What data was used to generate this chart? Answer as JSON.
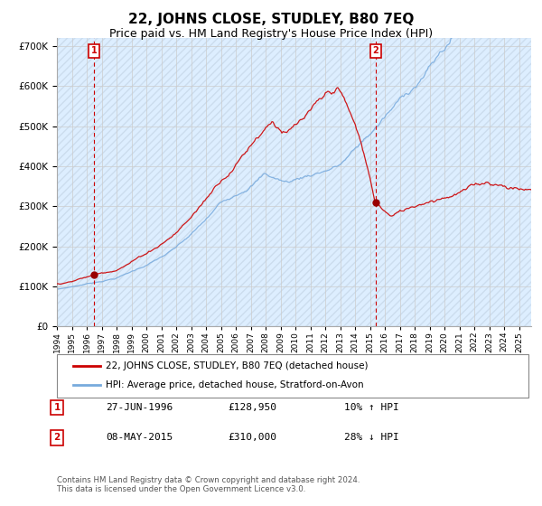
{
  "title": "22, JOHNS CLOSE, STUDLEY, B80 7EQ",
  "subtitle": "Price paid vs. HM Land Registry's House Price Index (HPI)",
  "title_fontsize": 11,
  "subtitle_fontsize": 9,
  "bg_color": "#ddeeff",
  "line1_color": "#cc0000",
  "line2_color": "#77aadd",
  "ylim": [
    0,
    720000
  ],
  "yticks": [
    0,
    100000,
    200000,
    300000,
    400000,
    500000,
    600000,
    700000
  ],
  "year_start": 1994,
  "year_end": 2025,
  "purchase1_year": 1996.5,
  "purchase1_price": 128950,
  "purchase2_year": 2015.37,
  "purchase2_price": 310000,
  "legend_line1": "22, JOHNS CLOSE, STUDLEY, B80 7EQ (detached house)",
  "legend_line2": "HPI: Average price, detached house, Stratford-on-Avon",
  "table_label1": "1",
  "table_date1": "27-JUN-1996",
  "table_price1": "£128,950",
  "table_hpi1": "10% ↑ HPI",
  "table_label2": "2",
  "table_date2": "08-MAY-2015",
  "table_price2": "£310,000",
  "table_hpi2": "28% ↓ HPI",
  "footer": "Contains HM Land Registry data © Crown copyright and database right 2024.\nThis data is licensed under the Open Government Licence v3.0.",
  "grid_color": "#aaaaaa",
  "vline_color": "#cc0000"
}
